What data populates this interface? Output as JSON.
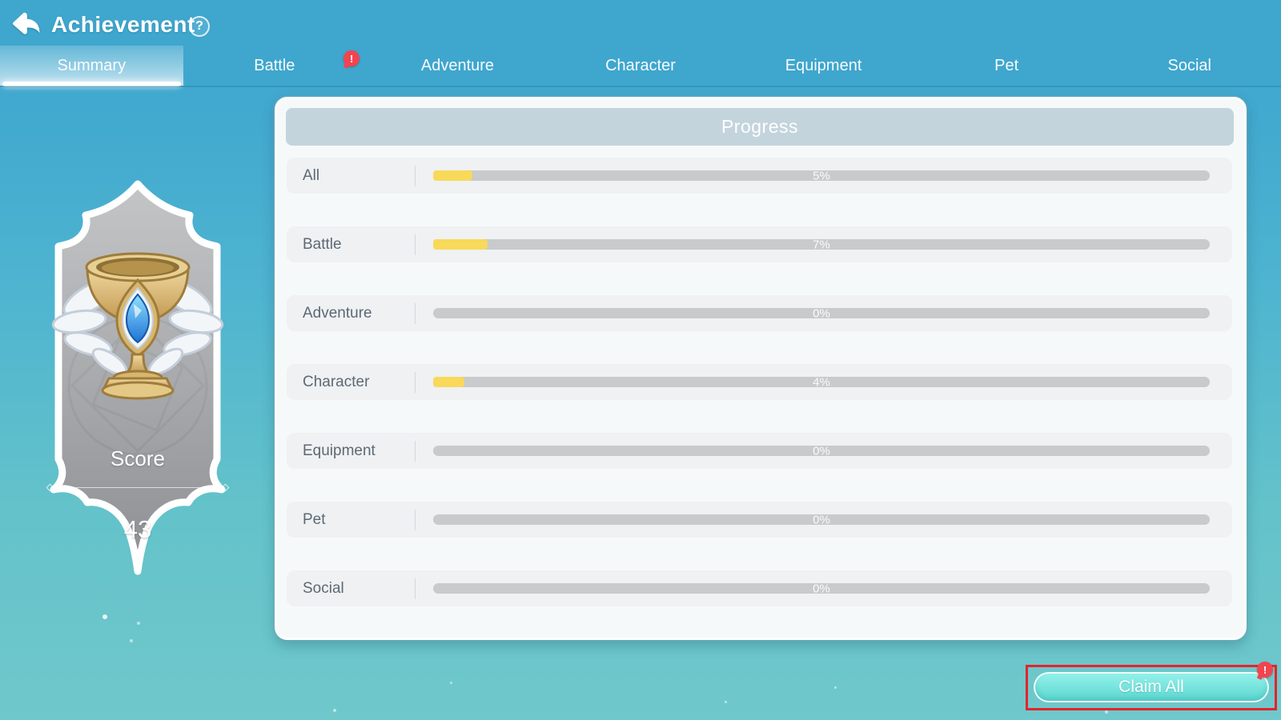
{
  "header": {
    "title": "Achievement",
    "back_icon": "back-arrow",
    "help_label": "?"
  },
  "tabs": [
    {
      "label": "Summary",
      "active": true,
      "badge": ""
    },
    {
      "label": "Battle",
      "active": false,
      "badge": "!"
    },
    {
      "label": "Adventure",
      "active": false,
      "badge": ""
    },
    {
      "label": "Character",
      "active": false,
      "badge": ""
    },
    {
      "label": "Equipment",
      "active": false,
      "badge": ""
    },
    {
      "label": "Pet",
      "active": false,
      "badge": ""
    },
    {
      "label": "Social",
      "active": false,
      "badge": ""
    }
  ],
  "score_card": {
    "label": "Score",
    "value": "43",
    "icon": "trophy"
  },
  "panel": {
    "title": "Progress",
    "rows": [
      {
        "label": "All",
        "percent": 5,
        "percent_label": "5%"
      },
      {
        "label": "Battle",
        "percent": 7,
        "percent_label": "7%"
      },
      {
        "label": "Adventure",
        "percent": 0,
        "percent_label": "0%"
      },
      {
        "label": "Character",
        "percent": 4,
        "percent_label": "4%"
      },
      {
        "label": "Equipment",
        "percent": 0,
        "percent_label": "0%"
      },
      {
        "label": "Pet",
        "percent": 0,
        "percent_label": "0%"
      },
      {
        "label": "Social",
        "percent": 0,
        "percent_label": "0%"
      }
    ]
  },
  "claim": {
    "label": "Claim All",
    "badge": "!"
  },
  "colors": {
    "top_blue": "#3FA6CE",
    "bottom_teal": "#6FC8CB",
    "progress_yellow": "#F8D95A",
    "panel_header": "#C4D4DD",
    "alert_red": "#F2444F",
    "highlight_red": "#E3242B",
    "claim_teal": "#74E3DC"
  }
}
